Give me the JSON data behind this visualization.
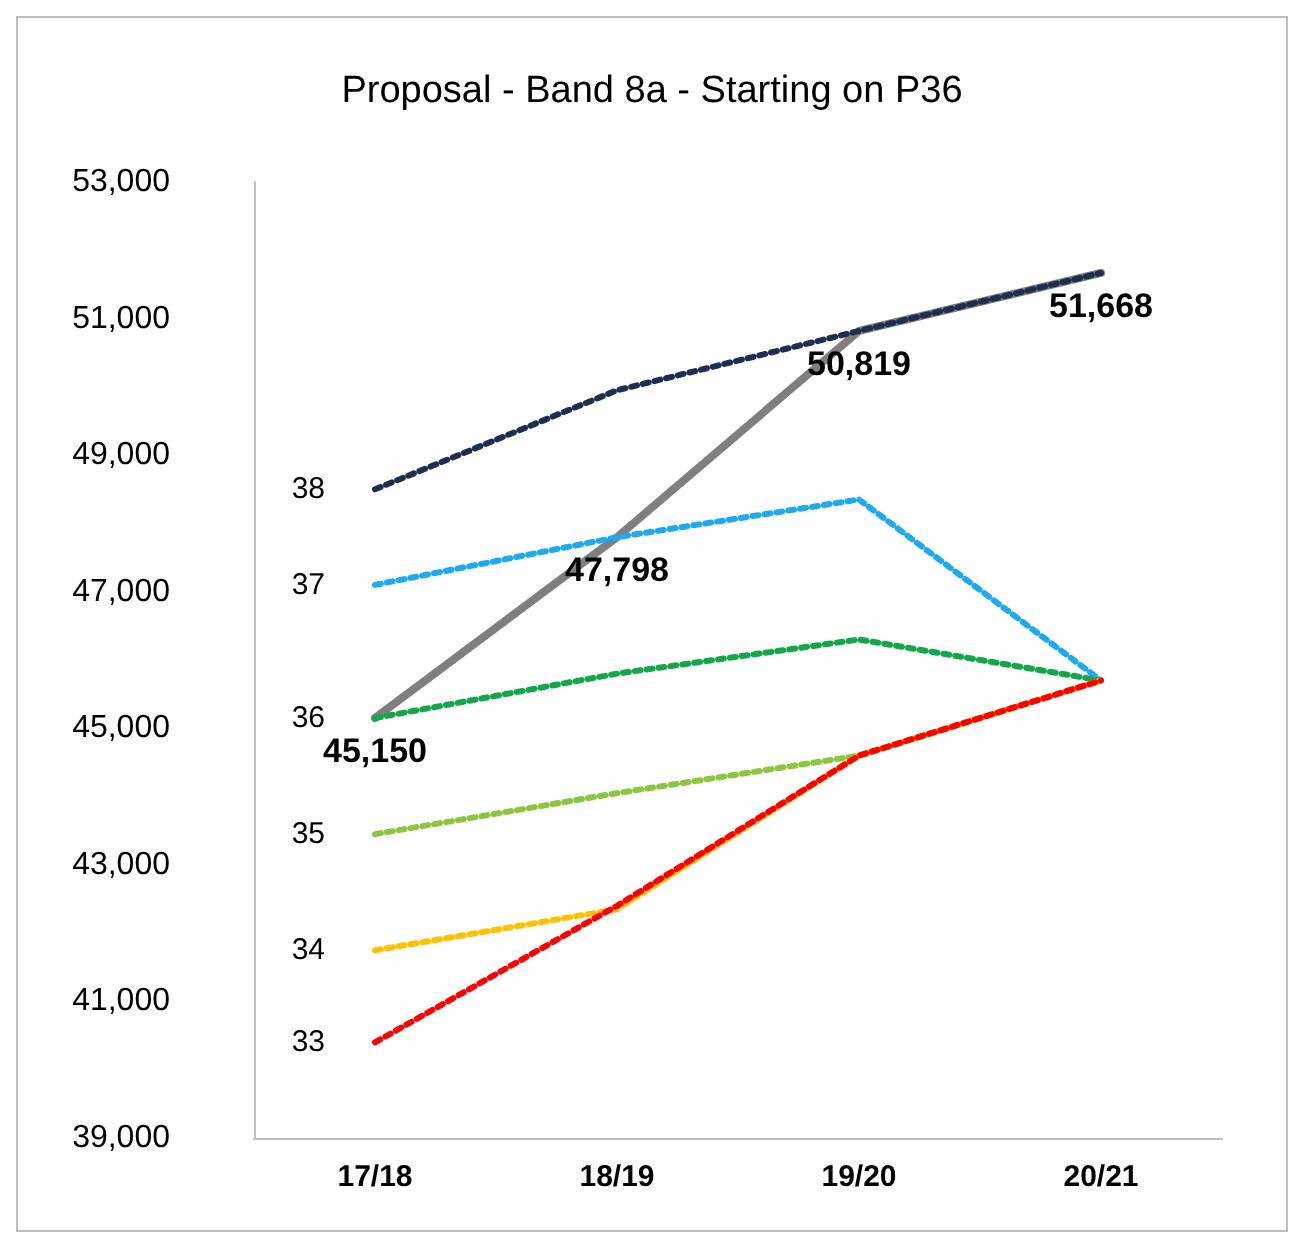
{
  "chart_data": {
    "type": "line",
    "title": "Proposal - Band 8a - Starting on P36",
    "categories": [
      "17/18",
      "18/19",
      "19/20",
      "20/21"
    ],
    "series": [
      {
        "name": "38",
        "color": "#1f2d4f",
        "values": [
          48500,
          49950,
          50819,
          51668
        ]
      },
      {
        "name": "37",
        "color": "#1eaaf0",
        "values": [
          47100,
          47798,
          48350,
          45700
        ]
      },
      {
        "name": "36",
        "color": "#12a84a",
        "values": [
          45150,
          45800,
          46300,
          45700
        ]
      },
      {
        "name": "35",
        "color": "#8cc63f",
        "values": [
          43450,
          44050,
          44600,
          45700
        ]
      },
      {
        "name": "34",
        "color": "#ffc000",
        "values": [
          41750,
          42350,
          44600,
          45700
        ]
      },
      {
        "name": "33",
        "color": "#ff0000",
        "values": [
          40400,
          42400,
          44600,
          45700
        ]
      },
      {
        "color": "#7f7f7f",
        "line_style": "solid",
        "values": [
          45150,
          47798,
          50819,
          51668
        ],
        "value_labels": [
          "45,150",
          "47,798",
          "50,819",
          "51,668"
        ]
      }
    ],
    "ylim": [
      39000,
      53000
    ],
    "yticks": [
      {
        "value": 39000,
        "label": "39,000"
      },
      {
        "value": 41000,
        "label": "41,000"
      },
      {
        "value": 43000,
        "label": "43,000"
      },
      {
        "value": 45000,
        "label": "45,000"
      },
      {
        "value": 47000,
        "label": "47,000"
      },
      {
        "value": 49000,
        "label": "49,000"
      },
      {
        "value": 51000,
        "label": "51,000"
      },
      {
        "value": 53000,
        "label": "53,000"
      }
    ],
    "grid": false,
    "legend": false,
    "marker": "none",
    "line_style": "dotted"
  }
}
